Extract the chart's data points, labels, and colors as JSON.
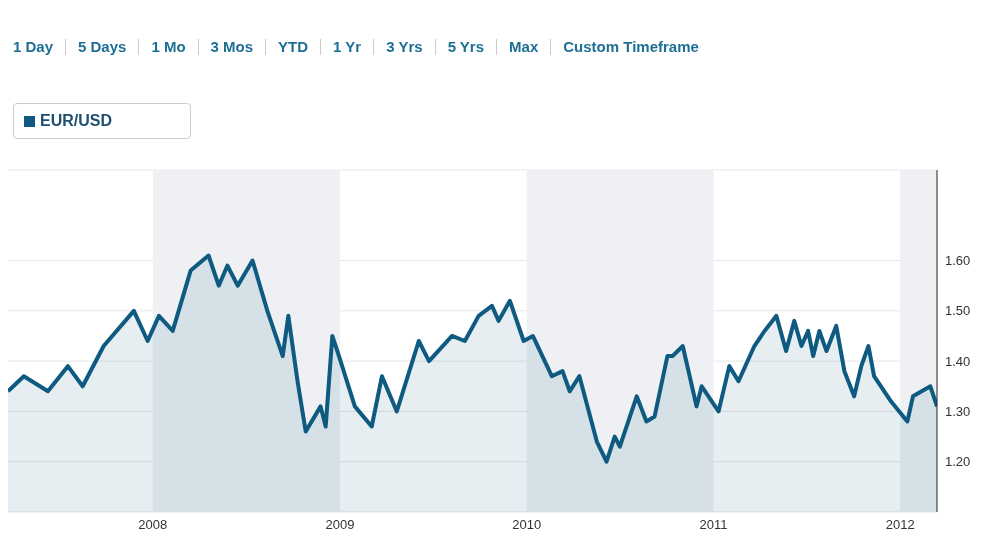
{
  "chart_data": {
    "type": "area",
    "annotations": [
      "1 Day",
      "5 Days",
      "1 Mo",
      "3 Mos",
      "YTD",
      "1 Yr",
      "3 Yrs",
      "5 Yrs",
      "Max",
      "Custom Timeframe"
    ],
    "x": [
      "2007-03-24",
      "2007-04-24",
      "2007-06-10",
      "2007-07-19",
      "2007-08-17",
      "2007-09-27",
      "2007-11-25",
      "2007-12-22",
      "2008-01-13",
      "2008-02-09",
      "2008-03-15",
      "2008-04-19",
      "2008-05-09",
      "2008-05-26",
      "2008-06-15",
      "2008-07-14",
      "2008-08-12",
      "2008-09-11",
      "2008-09-22",
      "2008-10-10",
      "2008-10-26",
      "2008-11-24",
      "2008-12-04",
      "2008-12-17",
      "2008-12-30",
      "2009-01-30",
      "2009-03-04",
      "2009-03-24",
      "2009-04-22",
      "2009-06-04",
      "2009-06-24",
      "2009-08-08",
      "2009-09-02",
      "2009-09-29",
      "2009-10-25",
      "2009-11-07",
      "2009-11-29",
      "2009-12-26",
      "2010-01-13",
      "2010-02-19",
      "2010-03-12",
      "2010-03-26",
      "2010-04-14",
      "2010-05-18",
      "2010-06-06",
      "2010-06-22",
      "2010-07-02",
      "2010-08-04",
      "2010-08-23",
      "2010-09-08",
      "2010-10-03",
      "2010-10-13",
      "2010-11-02",
      "2010-11-29",
      "2010-12-09",
      "2011-01-11",
      "2011-02-01",
      "2011-02-19",
      "2011-03-22",
      "2011-04-11",
      "2011-05-04",
      "2011-05-23",
      "2011-06-08",
      "2011-06-22",
      "2011-07-05",
      "2011-07-15",
      "2011-07-27",
      "2011-08-10",
      "2011-08-29",
      "2011-09-14",
      "2011-10-03",
      "2011-10-17",
      "2011-10-31",
      "2011-11-11",
      "2011-12-14",
      "2012-01-15",
      "2012-01-26",
      "2012-02-29",
      "2012-03-13"
    ],
    "series": [
      {
        "name": "EUR/USD",
        "color": "#0e5a80",
        "values": [
          1.34,
          1.37,
          1.34,
          1.39,
          1.35,
          1.43,
          1.5,
          1.44,
          1.49,
          1.46,
          1.58,
          1.61,
          1.55,
          1.59,
          1.55,
          1.6,
          1.5,
          1.41,
          1.49,
          1.36,
          1.26,
          1.31,
          1.27,
          1.45,
          1.41,
          1.31,
          1.27,
          1.37,
          1.3,
          1.44,
          1.4,
          1.45,
          1.44,
          1.49,
          1.51,
          1.48,
          1.52,
          1.44,
          1.45,
          1.37,
          1.38,
          1.34,
          1.37,
          1.24,
          1.2,
          1.25,
          1.23,
          1.33,
          1.28,
          1.29,
          1.41,
          1.41,
          1.43,
          1.31,
          1.35,
          1.3,
          1.39,
          1.36,
          1.43,
          1.46,
          1.49,
          1.42,
          1.48,
          1.43,
          1.46,
          1.41,
          1.46,
          1.42,
          1.47,
          1.38,
          1.33,
          1.39,
          1.43,
          1.37,
          1.32,
          1.28,
          1.33,
          1.35,
          1.31
        ]
      }
    ],
    "xlim": [
      "2007-03-24",
      "2012-03-13"
    ],
    "xticks": [
      {
        "value": "2008-01-01",
        "label": "2008"
      },
      {
        "value": "2009-01-01",
        "label": "2009"
      },
      {
        "value": "2010-01-01",
        "label": "2010"
      },
      {
        "value": "2011-01-01",
        "label": "2011"
      },
      {
        "value": "2012-01-01",
        "label": "2012"
      }
    ],
    "ylim": [
      1.1,
      1.78
    ],
    "yticks": [
      {
        "value": 1.2,
        "label": "1.20"
      },
      {
        "value": 1.3,
        "label": "1.30"
      },
      {
        "value": 1.4,
        "label": "1.40"
      },
      {
        "value": 1.5,
        "label": "1.50"
      },
      {
        "value": 1.6,
        "label": "1.60"
      }
    ],
    "bands": [
      {
        "axis": "x",
        "from": "2008-01-01",
        "to": "2009-01-01",
        "color": "#eef0f3"
      },
      {
        "axis": "x",
        "from": "2010-01-01",
        "to": "2011-01-01",
        "color": "#eef0f3"
      },
      {
        "axis": "x",
        "from": "2012-01-01",
        "to": "2012-03-13",
        "color": "#eef0f3"
      }
    ],
    "grid": "y",
    "legend": "top left"
  }
}
